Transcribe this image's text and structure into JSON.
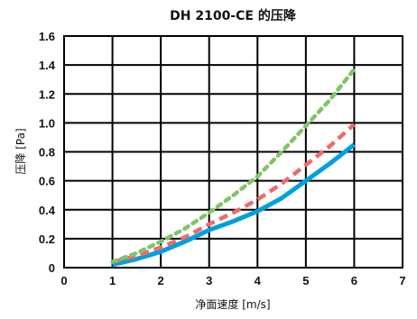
{
  "chart_data": {
    "type": "line",
    "title": "DH 2100-CE 的压降",
    "xlabel": "净面速度 [m/s]",
    "ylabel": "压降 [Pa]",
    "xlim": [
      0,
      7
    ],
    "ylim": [
      0,
      1.6
    ],
    "xticks": [
      "0",
      "1",
      "2",
      "3",
      "4",
      "5",
      "6",
      "7"
    ],
    "yticks": [
      "0",
      "0.2",
      "0.4",
      "0.6",
      "0.8",
      "1.0",
      "1.2",
      "1.4",
      "1.6"
    ],
    "grid": true,
    "legend": "none",
    "series": [
      {
        "color": "#00a0e0",
        "style": "solid",
        "x": [
          1,
          1.5,
          2,
          2.5,
          3,
          3.5,
          4,
          4.5,
          5,
          5.5,
          6
        ],
        "y": [
          0.02,
          0.06,
          0.11,
          0.18,
          0.26,
          0.32,
          0.39,
          0.48,
          0.6,
          0.72,
          0.85
        ]
      },
      {
        "color": "#ee6a6a",
        "style": "dashed",
        "x": [
          1,
          1.5,
          2,
          2.5,
          3,
          3.5,
          4,
          4.5,
          5,
          5.5,
          6
        ],
        "y": [
          0.04,
          0.08,
          0.14,
          0.21,
          0.3,
          0.38,
          0.47,
          0.58,
          0.71,
          0.84,
          0.99
        ]
      },
      {
        "color": "#80c46a",
        "style": "dotted",
        "x": [
          1,
          1.5,
          2,
          2.5,
          3,
          3.5,
          4,
          4.5,
          5,
          5.5,
          6
        ],
        "y": [
          0.04,
          0.1,
          0.18,
          0.27,
          0.38,
          0.5,
          0.63,
          0.8,
          0.98,
          1.16,
          1.37
        ]
      }
    ]
  }
}
